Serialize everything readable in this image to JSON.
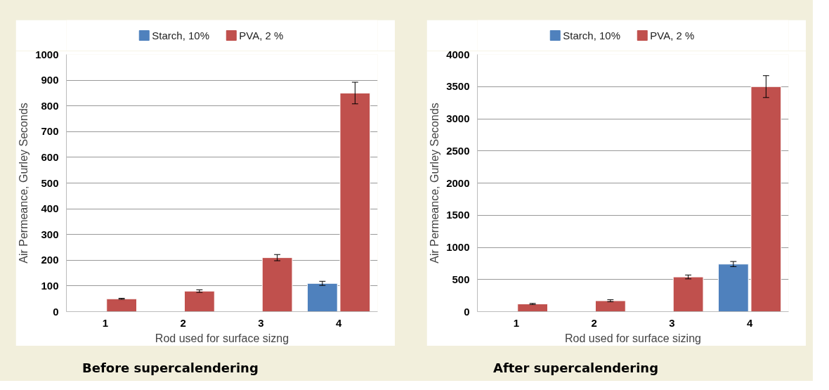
{
  "chart_data": [
    {
      "type": "bar",
      "categories": [
        "1",
        "2",
        "3",
        "4"
      ],
      "xlabel": "Rod used for surface sizng",
      "ylabel": "Air Permeance, Gurley Seconds",
      "ylim": [
        0,
        1000
      ],
      "yticks": [
        0,
        100,
        200,
        300,
        400,
        500,
        600,
        700,
        800,
        900,
        1000
      ],
      "grid": "y",
      "legend": "top",
      "annotations": [
        "Before supercalendering"
      ],
      "series": [
        {
          "name": "Starch, 10%",
          "color": "#4f81bd",
          "values": [
            null,
            null,
            null,
            110
          ],
          "errors": [
            null,
            null,
            null,
            8
          ]
        },
        {
          "name": "PVA, 2 %",
          "color": "#c0504d",
          "values": [
            50,
            80,
            210,
            850
          ],
          "errors": [
            2,
            5,
            12,
            42
          ]
        }
      ]
    },
    {
      "type": "bar",
      "categories": [
        "1",
        "2",
        "3",
        "4"
      ],
      "xlabel": "Rod used for surface sizing",
      "ylabel": "Air Permeance, Gurley Seconds",
      "ylim": [
        0,
        4000
      ],
      "yticks": [
        0,
        500,
        1000,
        1500,
        2000,
        2500,
        3000,
        3500,
        4000
      ],
      "grid": "y",
      "legend": "top",
      "annotations": [
        "After supercalendering"
      ],
      "series": [
        {
          "name": "Starch, 10%",
          "color": "#4f81bd",
          "values": [
            null,
            null,
            null,
            740
          ],
          "errors": [
            null,
            null,
            null,
            40
          ]
        },
        {
          "name": "PVA, 2 %",
          "color": "#c0504d",
          "values": [
            120,
            170,
            540,
            3500
          ],
          "errors": [
            8,
            15,
            30,
            170
          ]
        }
      ]
    }
  ]
}
